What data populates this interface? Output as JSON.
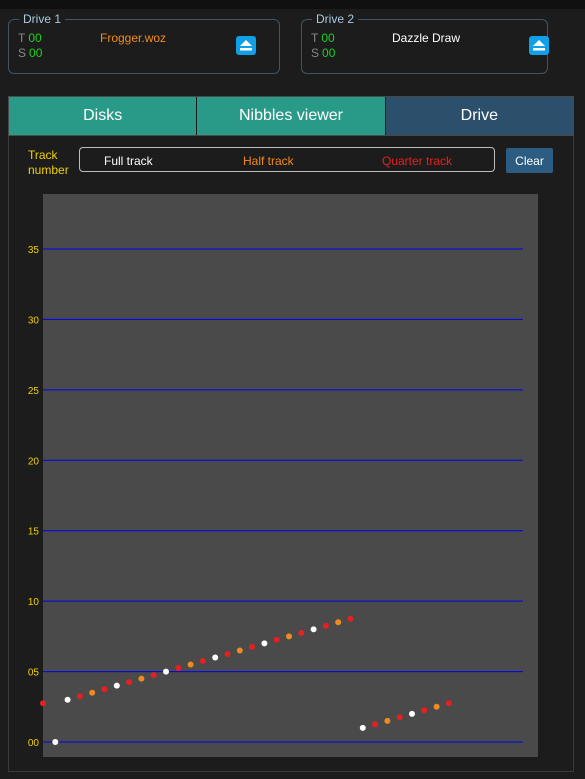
{
  "drive1": {
    "legend": "Drive 1",
    "t_label": "T",
    "t_value": "00",
    "s_label": "S",
    "s_value": "00",
    "disk": "Frogger.woz"
  },
  "drive2": {
    "legend": "Drive 2",
    "t_label": "T",
    "t_value": "00",
    "s_label": "S",
    "s_value": "00",
    "disk": "Dazzle Draw"
  },
  "tabs": [
    {
      "label": "Disks"
    },
    {
      "label": "Nibbles viewer"
    },
    {
      "label": "Drive",
      "active": true
    }
  ],
  "toolbar": {
    "track_number_label": "Track number",
    "legend_full": "Full track",
    "legend_half": "Half track",
    "legend_quarter": "Quarter track",
    "clear_label": "Clear"
  },
  "colors": {
    "full": "#ffffff",
    "half": "#f08a20",
    "quarter": "#e52020",
    "grid": "#0000ee",
    "tick": "#f0d000",
    "tab": "#2a9a88",
    "tab_active": "#2c4f6c",
    "eject": "#10a0e8"
  },
  "icons": {
    "eject": "eject-icon"
  },
  "chart_data": {
    "type": "scatter",
    "xlabel": "",
    "ylabel": "Track number",
    "ylim": [
      -1,
      39
    ],
    "yticks": [
      "00",
      "05",
      "10",
      "15",
      "20",
      "25",
      "30",
      "35"
    ],
    "ytick_values": [
      0,
      5,
      10,
      15,
      20,
      25,
      30,
      35
    ],
    "grid": true,
    "series": [
      {
        "kind": "quarter",
        "points": [
          [
            0,
            2.75
          ]
        ]
      },
      {
        "kind": "full",
        "points": [
          [
            1,
            0
          ]
        ]
      },
      {
        "kind": "full",
        "points": [
          [
            2,
            3
          ],
          [
            3,
            3.25
          ],
          [
            4,
            3.5
          ],
          [
            5,
            3.75
          ],
          [
            6,
            4
          ],
          [
            7,
            4.25
          ],
          [
            8,
            4.5
          ],
          [
            9,
            4.75
          ],
          [
            10,
            5
          ],
          [
            11,
            5.25
          ],
          [
            12,
            5.5
          ],
          [
            13,
            5.75
          ],
          [
            14,
            6
          ],
          [
            15,
            6.25
          ],
          [
            16,
            6.5
          ],
          [
            17,
            6.75
          ],
          [
            18,
            7
          ],
          [
            19,
            7.25
          ],
          [
            20,
            7.5
          ],
          [
            21,
            7.75
          ],
          [
            22,
            8
          ],
          [
            23,
            8.25
          ],
          [
            24,
            8.5
          ],
          [
            25,
            8.75
          ]
        ]
      },
      {
        "kind": "full",
        "points": [
          [
            26,
            1
          ],
          [
            27,
            1.25
          ],
          [
            28,
            1.5
          ],
          [
            29,
            1.75
          ],
          [
            30,
            2
          ],
          [
            31,
            2.25
          ],
          [
            32,
            2.5
          ],
          [
            33,
            2.75
          ]
        ]
      }
    ]
  }
}
